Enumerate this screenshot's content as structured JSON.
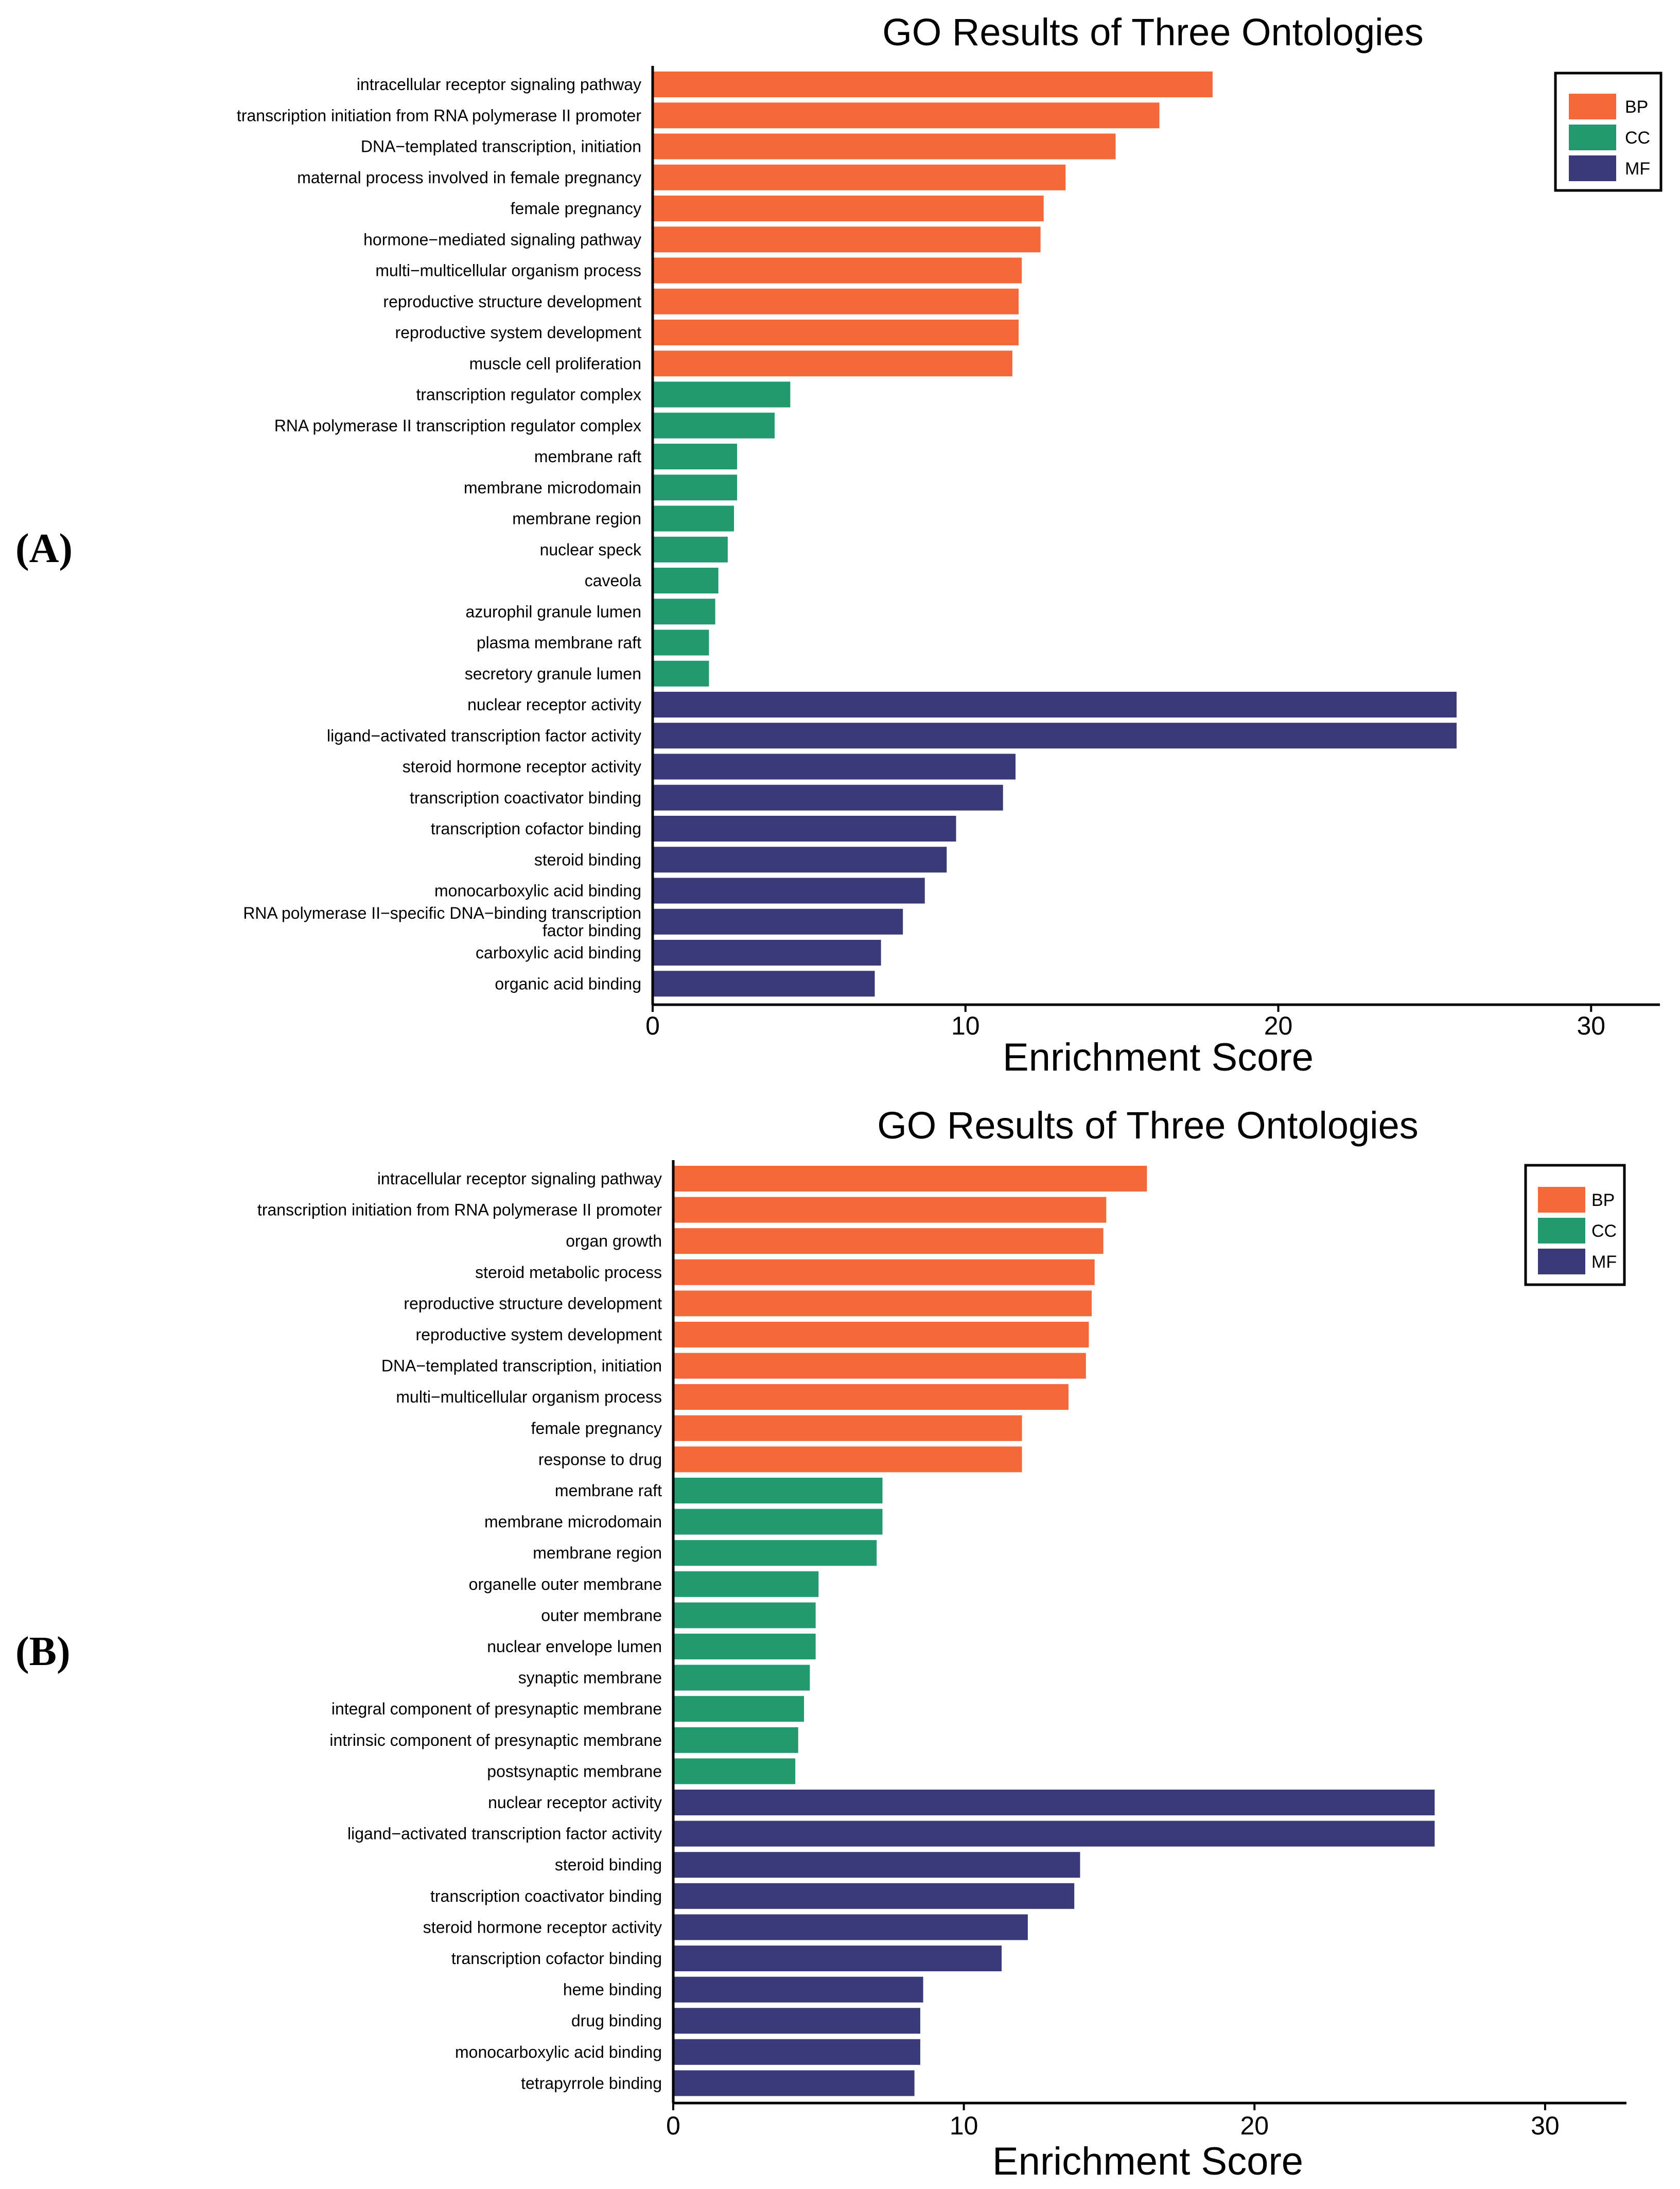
{
  "colors": {
    "BP": "#F4693A",
    "CC": "#23996F",
    "MF": "#393A77"
  },
  "chart_data": [
    {
      "type": "bar",
      "orientation": "horizontal",
      "panel_label": "(A)",
      "title": "GO Results of Three Ontologies",
      "xlabel": "Enrichment Score",
      "ylabel": "",
      "xlim": [
        0,
        32.2
      ],
      "xticks": [
        0,
        10,
        20,
        30
      ],
      "legend": {
        "position": "top-right",
        "entries": [
          "BP",
          "CC",
          "MF"
        ]
      },
      "categories": [
        "intracellular receptor signaling pathway",
        "transcription initiation from RNA polymerase II promoter",
        "DNA−templated transcription, initiation",
        "maternal process involved in female pregnancy",
        "female pregnancy",
        "hormone−mediated signaling pathway",
        "multi−multicellular organism process",
        "reproductive structure development",
        "reproductive system development",
        "muscle cell proliferation",
        "transcription regulator complex",
        "RNA polymerase II transcription regulator complex",
        "membrane raft",
        "membrane microdomain",
        "membrane region",
        "nuclear speck",
        "caveola",
        "azurophil granule lumen",
        "plasma membrane raft",
        "secretory granule lumen",
        "nuclear receptor activity",
        "ligand−activated transcription factor activity",
        "steroid hormone receptor activity",
        "transcription coactivator binding",
        "transcription cofactor binding",
        "steroid binding",
        "monocarboxylic acid binding",
        "RNA polymerase II−specific DNA−binding transcription factor binding",
        "carboxylic acid binding",
        "organic acid binding"
      ],
      "groups": [
        "BP",
        "BP",
        "BP",
        "BP",
        "BP",
        "BP",
        "BP",
        "BP",
        "BP",
        "BP",
        "CC",
        "CC",
        "CC",
        "CC",
        "CC",
        "CC",
        "CC",
        "CC",
        "CC",
        "CC",
        "MF",
        "MF",
        "MF",
        "MF",
        "MF",
        "MF",
        "MF",
        "MF",
        "MF",
        "MF"
      ],
      "values": [
        17.9,
        16.2,
        14.8,
        13.2,
        12.5,
        12.4,
        11.8,
        11.7,
        11.7,
        11.5,
        4.4,
        3.9,
        2.7,
        2.7,
        2.6,
        2.4,
        2.1,
        2.0,
        1.8,
        1.8,
        25.7,
        25.7,
        11.6,
        11.2,
        9.7,
        9.4,
        8.7,
        8.0,
        7.3,
        7.1
      ]
    },
    {
      "type": "bar",
      "orientation": "horizontal",
      "panel_label": "(B)",
      "title": "GO Results of Three Ontologies",
      "xlabel": "Enrichment Score",
      "ylabel": "",
      "xlim": [
        0,
        32.8
      ],
      "xticks": [
        0,
        10,
        20,
        30
      ],
      "legend": {
        "position": "top-right",
        "entries": [
          "BP",
          "CC",
          "MF"
        ]
      },
      "categories": [
        "intracellular receptor signaling pathway",
        "transcription initiation from RNA polymerase II promoter",
        "organ growth",
        "steroid metabolic process",
        "reproductive structure development",
        "reproductive system development",
        "DNA−templated transcription, initiation",
        "multi−multicellular organism process",
        "female pregnancy",
        "response to drug",
        "membrane raft",
        "membrane microdomain",
        "membrane region",
        "organelle outer membrane",
        "outer membrane",
        "nuclear envelope lumen",
        "synaptic membrane",
        "integral component of presynaptic membrane",
        "intrinsic component of presynaptic membrane",
        "postsynaptic membrane",
        "nuclear receptor activity",
        "ligand−activated transcription factor activity",
        "steroid binding",
        "transcription coactivator binding",
        "steroid hormone receptor activity",
        "transcription cofactor binding",
        "heme binding",
        "drug binding",
        "monocarboxylic acid binding",
        "tetrapyrrole binding"
      ],
      "groups": [
        "BP",
        "BP",
        "BP",
        "BP",
        "BP",
        "BP",
        "BP",
        "BP",
        "BP",
        "BP",
        "CC",
        "CC",
        "CC",
        "CC",
        "CC",
        "CC",
        "CC",
        "CC",
        "CC",
        "CC",
        "MF",
        "MF",
        "MF",
        "MF",
        "MF",
        "MF",
        "MF",
        "MF",
        "MF",
        "MF"
      ],
      "values": [
        16.3,
        14.9,
        14.8,
        14.5,
        14.4,
        14.3,
        14.2,
        13.6,
        12.0,
        12.0,
        7.2,
        7.2,
        7.0,
        5.0,
        4.9,
        4.9,
        4.7,
        4.5,
        4.3,
        4.2,
        26.2,
        26.2,
        14.0,
        13.8,
        12.2,
        11.3,
        8.6,
        8.5,
        8.5,
        8.3
      ]
    }
  ]
}
